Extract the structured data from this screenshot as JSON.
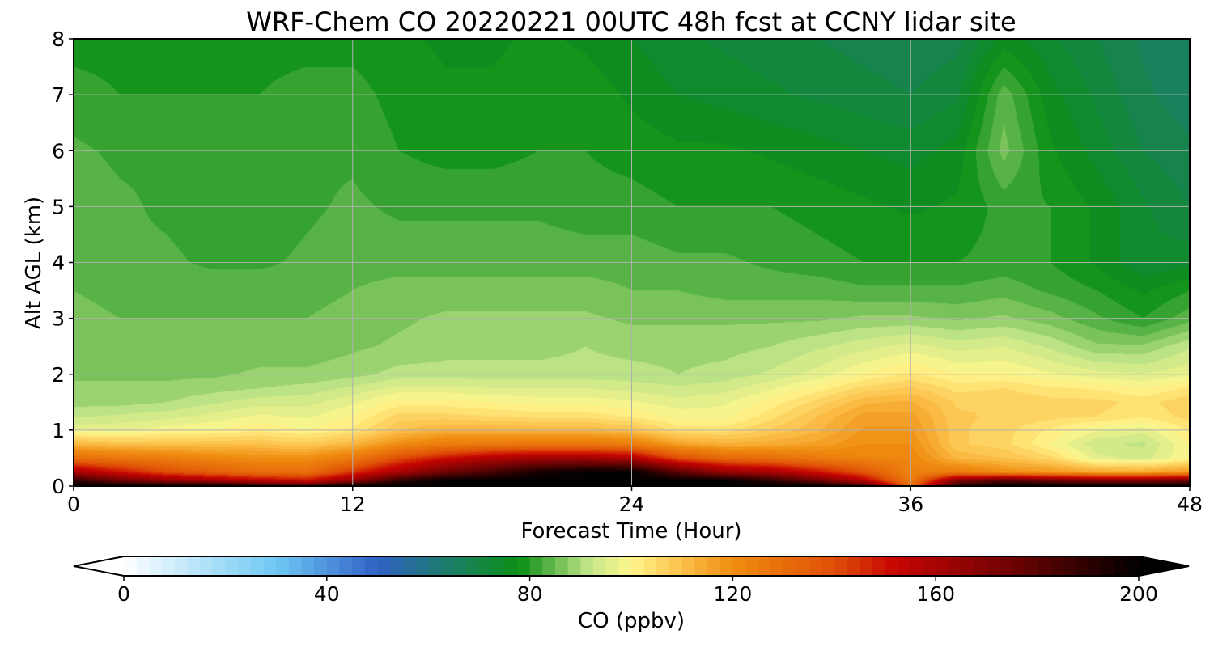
{
  "chart_data": {
    "type": "heatmap",
    "title": "WRF-Chem CO  20220221 00UTC 48h fcst at CCNY lidar site",
    "xlabel": "Forecast Time (Hour)",
    "ylabel": "Alt AGL (km)",
    "xlim": [
      0,
      48
    ],
    "ylim": [
      0,
      8
    ],
    "xticks": [
      0,
      12,
      24,
      36,
      48
    ],
    "yticks": [
      0,
      1,
      2,
      3,
      4,
      5,
      6,
      7,
      8
    ],
    "grid": true,
    "colorbar": {
      "label": "CO  (ppbv)",
      "min": 0,
      "max": 200,
      "ticks": [
        0,
        40,
        80,
        120,
        160,
        200
      ],
      "extend": "both",
      "orientation": "horizontal",
      "stops": [
        {
          "value": 0,
          "color": "#ffffff"
        },
        {
          "value": 30,
          "color": "#6ec8f4"
        },
        {
          "value": 50,
          "color": "#3161c6"
        },
        {
          "value": 65,
          "color": "#1a7f62"
        },
        {
          "value": 78,
          "color": "#0b8f15"
        },
        {
          "value": 92,
          "color": "#c5e78a"
        },
        {
          "value": 100,
          "color": "#fff68c"
        },
        {
          "value": 110,
          "color": "#fbc04a"
        },
        {
          "value": 120,
          "color": "#f08c10"
        },
        {
          "value": 140,
          "color": "#e05006"
        },
        {
          "value": 152,
          "color": "#c60402"
        },
        {
          "value": 175,
          "color": "#6e0303"
        },
        {
          "value": 200,
          "color": "#000000"
        }
      ]
    },
    "x_hours": [
      0,
      2,
      4,
      6,
      8,
      10,
      12,
      14,
      16,
      18,
      20,
      22,
      24,
      26,
      28,
      30,
      32,
      34,
      36,
      38,
      40,
      42,
      44,
      46,
      48
    ],
    "y_km": [
      0,
      0.1,
      0.25,
      0.5,
      0.75,
      1,
      1.25,
      1.5,
      1.75,
      2,
      2.5,
      3,
      3.5,
      4,
      5,
      6,
      7,
      8
    ],
    "z_ppbv": [
      [
        200,
        200,
        200,
        200,
        190,
        185,
        200,
        200,
        200,
        200,
        200,
        200,
        200,
        200,
        200,
        200,
        200,
        185,
        130,
        190,
        200,
        200,
        200,
        200,
        200
      ],
      [
        190,
        175,
        165,
        160,
        155,
        150,
        165,
        190,
        200,
        200,
        200,
        200,
        200,
        200,
        200,
        190,
        175,
        155,
        125,
        170,
        180,
        175,
        170,
        170,
        175
      ],
      [
        160,
        150,
        140,
        135,
        130,
        130,
        145,
        160,
        175,
        185,
        195,
        200,
        200,
        180,
        165,
        160,
        150,
        138,
        123,
        125,
        120,
        118,
        115,
        115,
        118
      ],
      [
        130,
        127,
        125,
        122,
        120,
        120,
        126,
        140,
        150,
        158,
        162,
        162,
        158,
        140,
        132,
        130,
        126,
        123,
        122,
        112,
        110,
        106,
        96,
        94,
        100
      ],
      [
        112,
        110,
        110,
        110,
        110,
        108,
        112,
        120,
        125,
        126,
        127,
        127,
        125,
        116,
        113,
        114,
        116,
        120,
        120,
        108,
        106,
        100,
        93,
        92,
        100
      ],
      [
        97,
        97,
        99,
        100,
        102,
        100,
        103,
        110,
        113,
        113,
        112,
        112,
        110,
        104,
        104,
        108,
        112,
        118,
        118,
        108,
        106,
        102,
        98,
        96,
        103
      ],
      [
        92,
        93,
        94,
        96,
        98,
        97,
        100,
        106,
        106,
        105,
        104,
        104,
        102,
        99,
        99,
        104,
        110,
        116,
        116,
        108,
        107,
        106,
        105,
        103,
        106
      ],
      [
        89,
        89,
        90,
        92,
        94,
        94,
        97,
        101,
        101,
        100,
        99,
        99,
        98,
        96,
        97,
        101,
        106,
        112,
        113,
        107,
        107,
        106,
        106,
        104,
        107
      ],
      [
        88,
        88,
        88,
        89,
        90,
        91,
        93,
        96,
        96,
        95,
        95,
        95,
        94,
        93,
        94,
        97,
        101,
        106,
        108,
        104,
        105,
        103,
        102,
        100,
        103
      ],
      [
        87,
        87,
        87,
        87,
        88,
        88,
        89,
        91,
        91,
        91,
        91,
        91,
        91,
        90,
        91,
        93,
        96,
        100,
        103,
        100,
        100,
        98,
        96,
        95,
        97
      ],
      [
        86,
        86,
        86,
        86,
        86,
        86,
        87,
        88,
        89,
        89,
        89,
        90,
        89,
        89,
        89,
        90,
        92,
        94,
        96,
        94,
        95,
        92,
        88,
        88,
        92
      ],
      [
        86,
        85,
        85,
        85,
        85,
        85,
        86,
        87,
        88,
        88,
        88,
        88,
        87,
        87,
        87,
        87,
        87,
        88,
        88,
        87,
        88,
        86,
        83,
        80,
        84
      ],
      [
        85,
        84,
        84,
        84,
        84,
        84,
        85,
        86,
        86,
        86,
        86,
        86,
        85,
        85,
        84,
        84,
        84,
        83,
        83,
        83,
        84,
        82,
        80,
        77,
        80
      ],
      [
        84,
        83,
        83,
        82,
        82,
        83,
        84,
        84,
        84,
        84,
        84,
        84,
        84,
        83,
        83,
        82,
        81,
        80,
        80,
        80,
        81,
        80,
        77,
        73,
        74
      ],
      [
        84,
        83,
        82,
        81,
        81,
        82,
        83,
        82,
        82,
        82,
        82,
        81,
        81,
        80,
        80,
        80,
        79,
        78,
        77,
        78,
        81,
        80,
        77,
        73,
        70
      ],
      [
        83,
        82,
        82,
        81,
        81,
        82,
        82,
        80,
        79,
        79,
        80,
        80,
        79,
        78,
        78,
        77,
        76,
        75,
        74,
        76,
        86,
        78,
        74,
        70,
        68
      ],
      [
        81,
        80,
        80,
        80,
        80,
        81,
        81,
        79,
        78,
        78,
        79,
        79,
        77,
        75,
        74,
        73,
        72,
        71,
        70,
        72,
        84,
        76,
        72,
        68,
        66
      ],
      [
        79,
        79,
        79,
        79,
        79,
        79,
        79,
        78,
        77,
        77,
        78,
        77,
        75,
        73,
        72,
        71,
        70,
        69,
        68,
        69,
        76,
        73,
        70,
        67,
        66
      ]
    ]
  }
}
